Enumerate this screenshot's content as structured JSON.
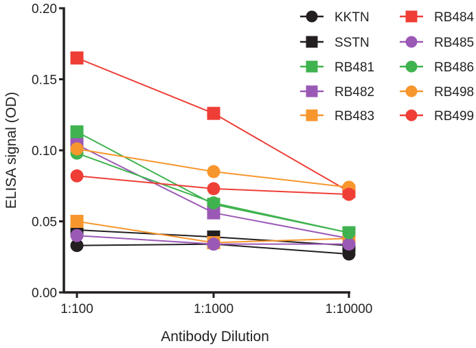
{
  "chart_data": {
    "type": "line",
    "title": "",
    "xlabel": "Antibody Dilution",
    "ylabel": "ELISA signal (OD)",
    "categories": [
      "1:100",
      "1:1000",
      "1:10000"
    ],
    "ylim": [
      0,
      0.2
    ],
    "yticks": [
      "0.00",
      "0.05",
      "0.10",
      "0.15",
      "0.20"
    ],
    "ytick_values": [
      0,
      0.05,
      0.1,
      0.15,
      0.2
    ],
    "grid": false,
    "legend_position": "top-right",
    "series": [
      {
        "name": "KKTN",
        "marker": "circle",
        "color": "#231f20",
        "values": [
          0.033,
          0.034,
          0.027
        ]
      },
      {
        "name": "SSTN",
        "marker": "square",
        "color": "#231f20",
        "values": [
          0.044,
          0.039,
          0.033
        ]
      },
      {
        "name": "RB481",
        "marker": "square",
        "color": "#3fb34f",
        "values": [
          0.113,
          0.062,
          0.042
        ]
      },
      {
        "name": "RB482",
        "marker": "square",
        "color": "#9b59b6",
        "values": [
          0.104,
          0.056,
          0.038
        ]
      },
      {
        "name": "RB483",
        "marker": "square",
        "color": "#f7962d",
        "values": [
          0.05,
          0.035,
          0.038
        ]
      },
      {
        "name": "RB484",
        "marker": "square",
        "color": "#ee3e36",
        "values": [
          0.165,
          0.126,
          0.071
        ]
      },
      {
        "name": "RB485",
        "marker": "circle",
        "color": "#9b59b6",
        "values": [
          0.04,
          0.034,
          0.034
        ]
      },
      {
        "name": "RB486",
        "marker": "circle",
        "color": "#3fb34f",
        "values": [
          0.098,
          0.063,
          0.042
        ]
      },
      {
        "name": "RB498",
        "marker": "circle",
        "color": "#f7962d",
        "values": [
          0.101,
          0.085,
          0.074
        ]
      },
      {
        "name": "RB499",
        "marker": "circle",
        "color": "#ee3e36",
        "values": [
          0.082,
          0.073,
          0.069
        ]
      }
    ]
  }
}
